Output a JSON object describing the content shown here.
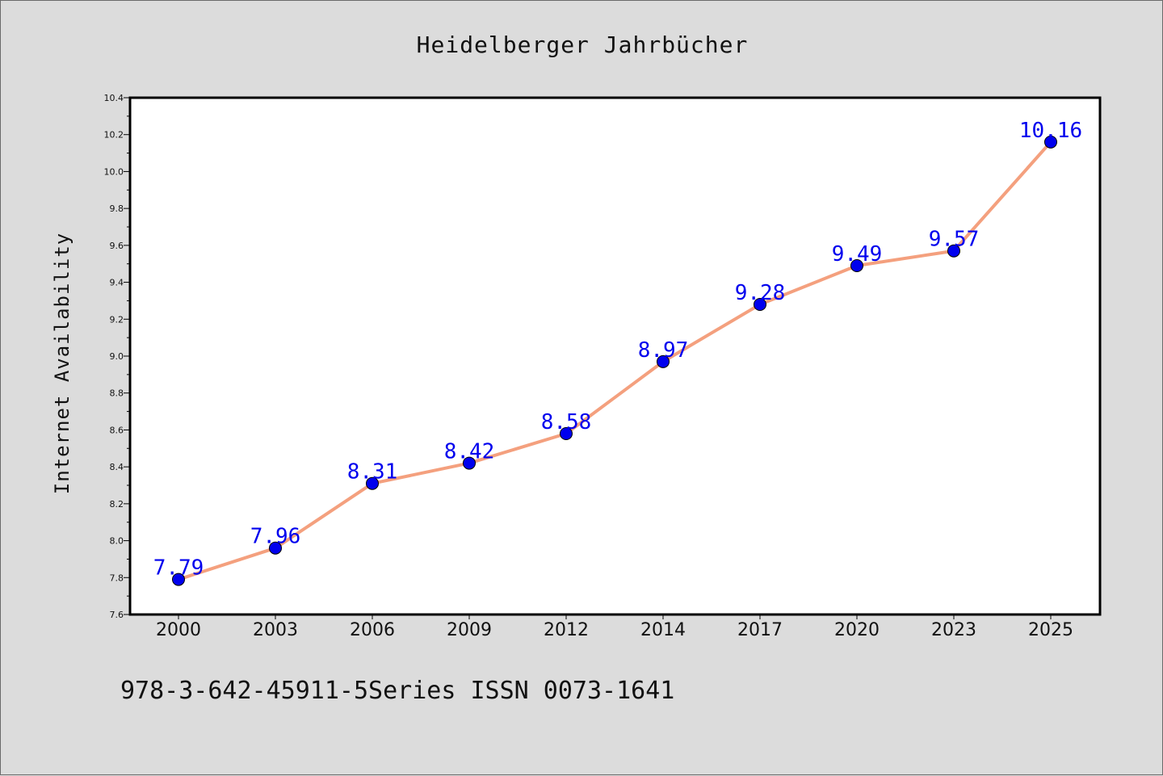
{
  "chart_data": {
    "type": "line",
    "title": "Heidelberger Jahrbücher",
    "xlabel": "",
    "ylabel": "Internet Availability",
    "categories": [
      "2000",
      "2003",
      "2006",
      "2009",
      "2012",
      "2014",
      "2017",
      "2020",
      "2023",
      "2025"
    ],
    "series": [
      {
        "values": [
          7.79,
          7.96,
          8.31,
          8.42,
          8.58,
          8.97,
          9.28,
          9.49,
          9.57,
          10.16
        ],
        "labels": [
          "7.79",
          "7.96",
          "8.31",
          "8.42",
          "8.58",
          "8.97",
          "9.28",
          "9.49",
          "9.57",
          "10.16"
        ],
        "line_color": "#f4a07e",
        "marker_color": "#0000ee"
      }
    ],
    "ylim": [
      7.6,
      10.4
    ],
    "yticks": [
      "7.6",
      "7.8",
      "8.0",
      "8.2",
      "8.4",
      "8.6",
      "8.8",
      "9.0",
      "9.2",
      "9.4",
      "9.6",
      "9.8",
      "10.0",
      "10.2",
      "10.4"
    ],
    "grid": false,
    "legend": "none",
    "label_color": "#0000ee"
  },
  "footer": {
    "text": "978-3-642-45911-5Series ISSN 0073-1641"
  }
}
